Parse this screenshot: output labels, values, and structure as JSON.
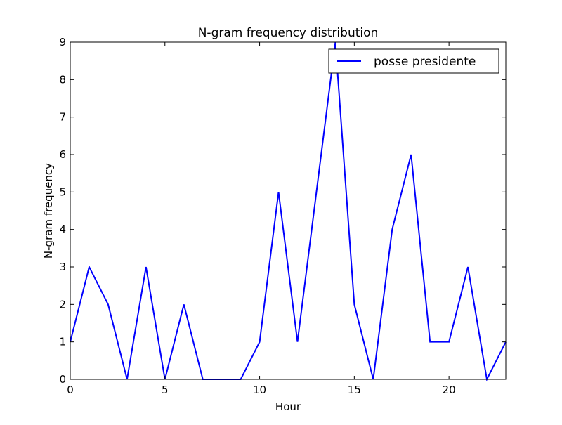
{
  "chart_data": {
    "type": "line",
    "title": "N-gram frequency distribution",
    "xlabel": "Hour",
    "ylabel": "N-gram frequency",
    "xlim": [
      0,
      23
    ],
    "ylim": [
      0,
      9
    ],
    "xticks": [
      0,
      5,
      10,
      15,
      20
    ],
    "yticks": [
      0,
      1,
      2,
      3,
      4,
      5,
      6,
      7,
      8,
      9
    ],
    "grid": false,
    "legend_position": "top-right",
    "series": [
      {
        "name": "posse presidente",
        "color": "#0000ff",
        "x": [
          0,
          1,
          2,
          3,
          4,
          5,
          6,
          7,
          8,
          9,
          10,
          11,
          12,
          13,
          14,
          15,
          16,
          17,
          18,
          19,
          20,
          21,
          22,
          23
        ],
        "y": [
          1,
          3,
          2,
          0,
          3,
          0,
          2,
          0,
          0,
          0,
          1,
          5,
          1,
          5,
          9,
          2,
          0,
          4,
          6,
          1,
          1,
          3,
          0,
          1
        ]
      }
    ]
  }
}
